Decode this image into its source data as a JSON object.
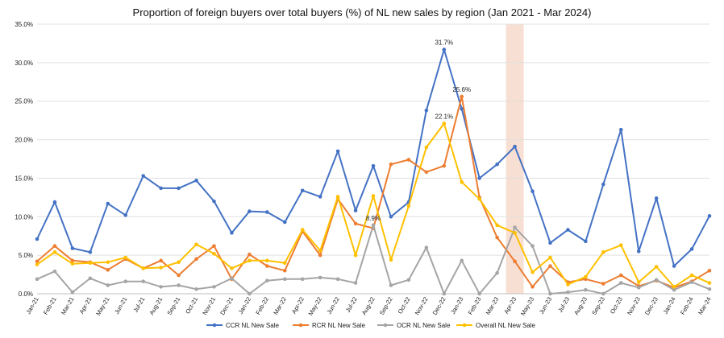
{
  "chart_data": {
    "type": "line",
    "title": "Proportion of foreign buyers over total buyers (%) of NL new sales by region (Jan 2021 - Mar 2024)",
    "xlabel": "",
    "ylabel": "",
    "ylim": [
      0,
      35
    ],
    "y_ticks": [
      "0.0%",
      "5.0%",
      "10.0%",
      "15.0%",
      "20.0%",
      "25.0%",
      "30.0%",
      "35.0%"
    ],
    "grid": "horizontal",
    "legend_position": "bottom",
    "highlight_category": "Apr-23",
    "highlight_color": "#f8dfd3",
    "categories": [
      "Jan-21",
      "Feb-21",
      "Mar-21",
      "Apr-21",
      "May-21",
      "Jun-21",
      "Jul-21",
      "Aug-21",
      "Sep-21",
      "Oct-21",
      "Nov-21",
      "Dec-21",
      "Jan-22",
      "Feb-22",
      "Mar-22",
      "Apr-22",
      "May-22",
      "Jun-22",
      "Jul-22",
      "Aug-22",
      "Sep-22",
      "Oct-22",
      "Nov-22",
      "Dec-22",
      "Jan-23",
      "Feb-23",
      "Mar-23",
      "Apr-23",
      "May-23",
      "Jun-23",
      "Jul-23",
      "Aug-23",
      "Sep-23",
      "Oct-23",
      "Nov-23",
      "Dec-23",
      "Jan-24",
      "Feb-24",
      "Mar-24"
    ],
    "series": [
      {
        "name": "CCR NL New Sale",
        "color": "#4472c4",
        "values": [
          7.1,
          11.9,
          5.9,
          5.4,
          11.7,
          10.2,
          15.3,
          13.7,
          13.7,
          14.7,
          12.0,
          7.9,
          10.7,
          10.6,
          9.3,
          13.4,
          12.6,
          18.5,
          10.8,
          16.6,
          10.0,
          11.9,
          23.8,
          31.7,
          24.0,
          15.0,
          16.8,
          19.1,
          13.3,
          6.6,
          8.3,
          6.8,
          14.2,
          21.3,
          5.5,
          12.4,
          3.6,
          5.8,
          10.1
        ]
      },
      {
        "name": "RCR NL New Sale",
        "color": "#ed7d31",
        "values": [
          4.2,
          6.2,
          4.3,
          4.1,
          3.1,
          4.5,
          3.3,
          4.3,
          2.4,
          4.5,
          6.2,
          1.9,
          5.1,
          3.6,
          3.0,
          8.1,
          5.0,
          12.3,
          9.1,
          8.5,
          16.8,
          17.4,
          15.8,
          16.6,
          25.6,
          12.5,
          7.3,
          4.2,
          0.9,
          3.6,
          1.5,
          1.9,
          1.3,
          2.4,
          1.0,
          1.7,
          0.8,
          1.6,
          3.0
        ]
      },
      {
        "name": "OCR NL New Sale",
        "color": "#a5a5a5",
        "values": [
          1.9,
          2.9,
          0.2,
          2.0,
          1.1,
          1.6,
          1.6,
          0.9,
          1.1,
          0.6,
          0.9,
          2.0,
          0.0,
          1.7,
          1.9,
          1.9,
          2.1,
          1.9,
          1.4,
          8.9,
          1.1,
          1.8,
          6.0,
          0.0,
          4.3,
          0.0,
          2.7,
          8.6,
          6.2,
          0.0,
          0.2,
          0.5,
          0.0,
          1.4,
          0.8,
          1.8,
          0.5,
          1.5,
          0.6
        ]
      },
      {
        "name": "Overall NL New Sale",
        "color": "#ffc000",
        "values": [
          3.8,
          5.4,
          3.9,
          4.0,
          4.1,
          4.7,
          3.3,
          3.4,
          4.1,
          6.4,
          5.2,
          3.3,
          4.3,
          4.3,
          4.0,
          8.3,
          5.6,
          12.6,
          5.0,
          12.7,
          4.4,
          11.4,
          19.0,
          22.1,
          14.5,
          12.3,
          8.9,
          7.9,
          2.8,
          4.7,
          1.2,
          2.2,
          5.4,
          6.3,
          1.5,
          3.5,
          0.9,
          2.4,
          1.4
        ]
      }
    ],
    "data_labels": [
      {
        "series": "CCR NL New Sale",
        "category": "Dec-22",
        "text": "31.7%"
      },
      {
        "series": "RCR NL New Sale",
        "category": "Jan-23",
        "text": "25.6%"
      },
      {
        "series": "Overall NL New Sale",
        "category": "Dec-22",
        "text": "22.1%"
      },
      {
        "series": "OCR NL New Sale",
        "category": "Aug-22",
        "text": "8.9%"
      }
    ]
  }
}
